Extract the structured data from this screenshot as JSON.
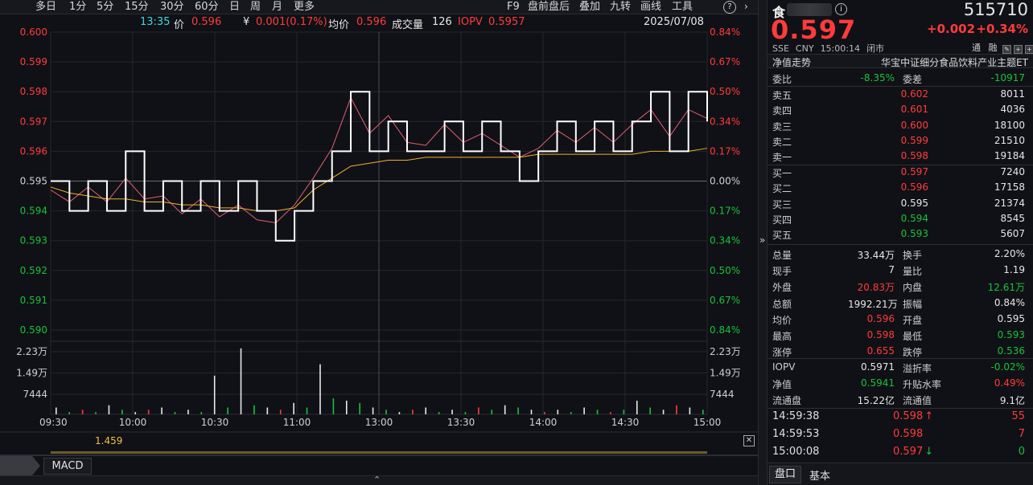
{
  "toolbar": {
    "left_items": [
      "多日",
      "1分",
      "5分",
      "15分",
      "30分",
      "60分",
      "日",
      "周",
      "月",
      "更多"
    ],
    "right_items": [
      "F9",
      "盘前盘后",
      "叠加",
      "九转",
      "画线",
      "工具"
    ],
    "help_icon": "question-icon",
    "next_icon": "chevron-right-icon"
  },
  "infobar": {
    "time": "13:35",
    "price_label": "价",
    "price": "0.596",
    "change_label": "¥",
    "change": "0.001(0.17%)",
    "avg_label": "均价",
    "avg": "0.596",
    "vol_label": "成交量",
    "vol": "126",
    "iopv_label": "IOPV",
    "iopv": "0.5957",
    "date": "2025/07/08"
  },
  "chart_data": {
    "type": "line",
    "x_ticks": [
      "09:30",
      "10:00",
      "10:30",
      "11:00",
      "13:00",
      "13:30",
      "14:00",
      "14:30",
      "15:00"
    ],
    "y_ticks_left": [
      "0.600",
      "0.599",
      "0.598",
      "0.597",
      "0.596",
      "0.595",
      "0.594",
      "0.593",
      "0.592",
      "0.591",
      "0.590"
    ],
    "y_ticks_right": [
      "0.84%",
      "0.67%",
      "0.50%",
      "0.34%",
      "0.17%",
      "0.00%",
      "0.17%",
      "0.34%",
      "0.50%",
      "0.67%",
      "0.84%"
    ],
    "ylim": [
      0.59,
      0.6
    ],
    "prev_close": 0.595,
    "volume_ticks": [
      "2.23万",
      "1.49万",
      "7444"
    ],
    "volume_ticks_right": [
      "2.23万",
      "1.49万",
      "7444"
    ],
    "series": [
      {
        "name": "价",
        "values": [
          0.595,
          0.594,
          0.595,
          0.594,
          0.596,
          0.594,
          0.595,
          0.594,
          0.595,
          0.594,
          0.595,
          0.594,
          0.593,
          0.594,
          0.595,
          0.596,
          0.598,
          0.596,
          0.597,
          0.596,
          0.596,
          0.597,
          0.596,
          0.597,
          0.596,
          0.595,
          0.596,
          0.597,
          0.596,
          0.597,
          0.596,
          0.597,
          0.598,
          0.596,
          0.598,
          0.597
        ]
      },
      {
        "name": "均价",
        "values": [
          0.5948,
          0.5946,
          0.5945,
          0.5944,
          0.5944,
          0.5943,
          0.5943,
          0.5942,
          0.5942,
          0.5941,
          0.5941,
          0.594,
          0.594,
          0.5941,
          0.5947,
          0.5951,
          0.5955,
          0.5956,
          0.5957,
          0.5957,
          0.5958,
          0.5958,
          0.5958,
          0.5958,
          0.5958,
          0.5958,
          0.5959,
          0.5959,
          0.5959,
          0.5959,
          0.5959,
          0.5959,
          0.596,
          0.596,
          0.596,
          0.5961
        ]
      },
      {
        "name": "IOPV",
        "values": [
          0.5947,
          0.5943,
          0.5948,
          0.5943,
          0.5951,
          0.5944,
          0.5945,
          0.5939,
          0.5944,
          0.5938,
          0.5942,
          0.5937,
          0.5936,
          0.5942,
          0.5951,
          0.5961,
          0.5978,
          0.5966,
          0.5972,
          0.5963,
          0.5962,
          0.5969,
          0.5963,
          0.5966,
          0.5962,
          0.5958,
          0.5961,
          0.5967,
          0.5963,
          0.5968,
          0.5963,
          0.5969,
          0.5974,
          0.5965,
          0.5974,
          0.5971
        ]
      }
    ],
    "volume": [
      3,
      1,
      2,
      1,
      4,
      2,
      1,
      2,
      3,
      1,
      2,
      1,
      17,
      3,
      29,
      4,
      3,
      2,
      5,
      3,
      22,
      7,
      6,
      5,
      3,
      2,
      1,
      2,
      3,
      1,
      2,
      1,
      3,
      2,
      4,
      3,
      2,
      1,
      2,
      1,
      3,
      2,
      1,
      2,
      6,
      3,
      2,
      4,
      3,
      2
    ],
    "volume_dir": [
      "u",
      "d",
      "u",
      "d",
      "u",
      "d",
      "u",
      "d",
      "u",
      "d",
      "u",
      "d",
      "u",
      "d",
      "u",
      "d",
      "u",
      "d",
      "u",
      "d",
      "u",
      "d",
      "u",
      "d",
      "u",
      "d",
      "u",
      "d",
      "u",
      "d",
      "u",
      "d",
      "u",
      "d",
      "u",
      "d",
      "u",
      "d",
      "u",
      "d",
      "u",
      "d",
      "u",
      "d",
      "u",
      "d",
      "u",
      "d",
      "u",
      "d"
    ]
  },
  "macd": {
    "value": "1.459",
    "tab_label": "MACD"
  },
  "panel": {
    "name_char": "食",
    "code": "515710",
    "price": "0.597",
    "change": "+0.002",
    "change_pct": "+0.34%",
    "exchange": "SSE",
    "currency": "CNY",
    "time": "15:00:14",
    "status": "闭市",
    "flag1": "通",
    "flag2": "融",
    "nav_label": "净值走势",
    "fund_name": "华宝中证细分食品饮料产业主题ET",
    "weibi_label": "委比",
    "weibi": "-8.35%",
    "weicha_label": "委差",
    "weicha": "-10917",
    "asks": [
      {
        "label": "卖五",
        "price": "0.602",
        "vol": "8011"
      },
      {
        "label": "卖四",
        "price": "0.601",
        "vol": "4036"
      },
      {
        "label": "卖三",
        "price": "0.600",
        "vol": "18100"
      },
      {
        "label": "卖二",
        "price": "0.599",
        "vol": "21510"
      },
      {
        "label": "卖一",
        "price": "0.598",
        "vol": "19184"
      }
    ],
    "bids": [
      {
        "label": "买一",
        "price": "0.597",
        "vol": "7240"
      },
      {
        "label": "买二",
        "price": "0.596",
        "vol": "17158"
      },
      {
        "label": "买三",
        "price": "0.595",
        "vol": "21374"
      },
      {
        "label": "买四",
        "price": "0.594",
        "vol": "8545"
      },
      {
        "label": "买五",
        "price": "0.593",
        "vol": "5607"
      }
    ],
    "stats": [
      {
        "l1": "总量",
        "v1": "33.44万",
        "l2": "换手",
        "v2": "2.20%"
      },
      {
        "l1": "现手",
        "v1": "7",
        "l2": "量比",
        "v2": "1.19"
      },
      {
        "l1": "外盘",
        "v1": "20.83万",
        "l2": "内盘",
        "v2": "12.61万"
      },
      {
        "l1": "总额",
        "v1": "1992.21万",
        "l2": "振幅",
        "v2": "0.84%"
      },
      {
        "l1": "均价",
        "v1": "0.596",
        "l2": "开盘",
        "v2": "0.595"
      },
      {
        "l1": "最高",
        "v1": "0.598",
        "l2": "最低",
        "v2": "0.593"
      },
      {
        "l1": "涨停",
        "v1": "0.655",
        "l2": "跌停",
        "v2": "0.536"
      }
    ],
    "stats2": [
      {
        "l1": "IOPV",
        "v1": "0.5971",
        "l2": "溢折率",
        "v2": "-0.02%"
      },
      {
        "l1": "净值",
        "v1": "0.5941",
        "l2": "升贴水率",
        "v2": "0.49%"
      },
      {
        "l1": "流通盘",
        "v1": "15.22亿",
        "l2": "流通值",
        "v2": "9.1亿"
      }
    ],
    "trades": [
      {
        "time": "14:59:38",
        "price": "0.598",
        "arrow": "↑",
        "vol": "55"
      },
      {
        "time": "14:59:53",
        "price": "0.598",
        "arrow": "",
        "vol": "7"
      },
      {
        "time": "15:00:08",
        "price": "0.597",
        "arrow": "↓",
        "vol": "0"
      }
    ],
    "tab_pan": "盘口",
    "tab_basic": "基本"
  },
  "colors": {
    "up": "#ff3b3b",
    "down": "#18c23a",
    "avg_line": "#f0b030",
    "iopv_line": "#e06070",
    "price_line": "#ffffff"
  }
}
